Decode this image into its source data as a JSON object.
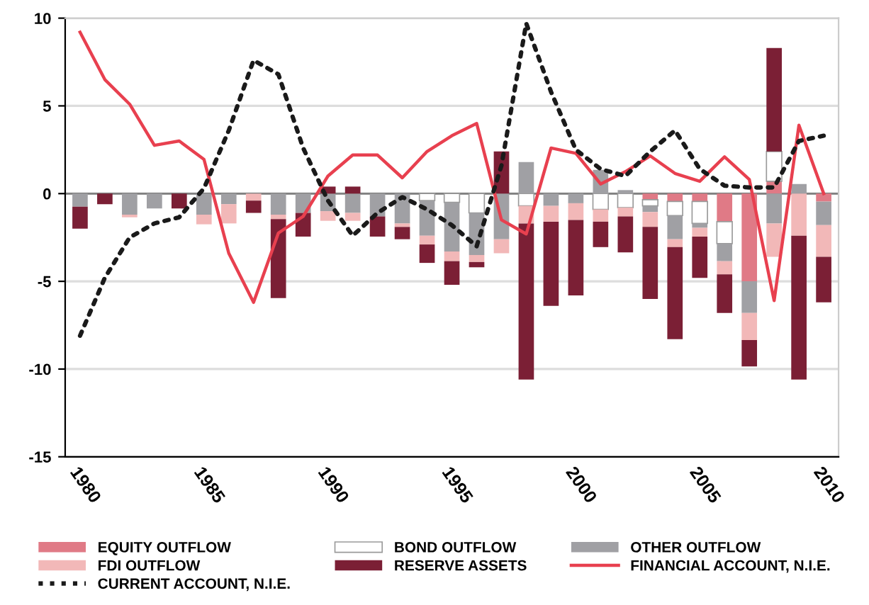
{
  "chart_data": {
    "type": "bar",
    "stacked": true,
    "categories": [
      "1980",
      null,
      null,
      null,
      null,
      "1985",
      null,
      null,
      null,
      null,
      "1990",
      null,
      null,
      null,
      null,
      "1995",
      null,
      null,
      null,
      null,
      "2000",
      null,
      null,
      null,
      null,
      "2005",
      null,
      null,
      null,
      null,
      "2010"
    ],
    "series": [
      {
        "name": "EQUITY OUTFLOW",
        "color": "#e07a86",
        "values": [
          null,
          null,
          null,
          null,
          null,
          null,
          null,
          null,
          null,
          null,
          null,
          null,
          null,
          null,
          null,
          null,
          null,
          null,
          null,
          null,
          null,
          null,
          null,
          -0.35,
          -0.45,
          -0.45,
          -1.6,
          -5.0,
          0.7,
          null,
          -0.45
        ]
      },
      {
        "name": "BOND OUTFLOW",
        "color": "#ffffff",
        "values": [
          null,
          null,
          null,
          null,
          null,
          null,
          null,
          null,
          null,
          null,
          null,
          null,
          null,
          null,
          -0.4,
          -0.5,
          -1.1,
          null,
          -0.7,
          null,
          null,
          -0.9,
          -0.8,
          -0.35,
          -0.8,
          -1.25,
          -1.25,
          null,
          1.7,
          null,
          null
        ]
      },
      {
        "name": "OTHER OUTFLOW",
        "color": "#a0a0a4",
        "values": [
          -0.75,
          null,
          -1.2,
          -0.85,
          null,
          -1.2,
          -0.6,
          null,
          -1.2,
          -1.1,
          -1.0,
          -1.1,
          -1.3,
          -1.7,
          -2.0,
          -2.8,
          -2.4,
          -2.6,
          1.8,
          -0.7,
          -0.55,
          1.35,
          0.2,
          -0.35,
          -1.35,
          -0.25,
          -1.0,
          -1.8,
          -1.7,
          0.55,
          -1.35
        ]
      },
      {
        "name": "FDI OUTFLOW",
        "color": "#f2b8b8",
        "values": [
          null,
          null,
          -0.15,
          null,
          null,
          -0.55,
          -1.1,
          -0.4,
          -0.25,
          null,
          -0.55,
          -0.45,
          null,
          -0.2,
          -0.5,
          -0.55,
          -0.4,
          -0.8,
          -1.0,
          -0.9,
          -0.95,
          -0.7,
          -0.5,
          -0.85,
          -0.45,
          -0.5,
          -0.75,
          -1.55,
          -1.9,
          -2.4,
          -1.8
        ]
      },
      {
        "name": "RESERVE ASSETS",
        "color": "#7b1f35",
        "values": [
          -1.25,
          -0.6,
          null,
          null,
          -0.85,
          null,
          null,
          -0.7,
          -4.5,
          -1.35,
          0.4,
          0.4,
          -1.15,
          -0.7,
          -1.05,
          -1.35,
          -0.3,
          2.4,
          -8.9,
          -4.8,
          -4.3,
          -1.45,
          -2.05,
          -4.1,
          -5.25,
          -2.35,
          -2.2,
          -1.5,
          5.9,
          -8.2,
          -2.6
        ]
      },
      {
        "name": "FINANCIAL ACCOUNT, N.I.E.",
        "type": "line",
        "color": "#e8404f",
        "line_style": "solid",
        "values": [
          9.2,
          6.5,
          5.1,
          2.75,
          3.0,
          1.95,
          -3.4,
          -6.2,
          -2.25,
          -1.3,
          1.0,
          2.2,
          2.2,
          0.9,
          2.4,
          3.3,
          4.0,
          -1.5,
          -2.3,
          2.6,
          2.3,
          0.55,
          1.25,
          2.15,
          1.15,
          0.7,
          2.1,
          0.8,
          -6.1,
          3.9,
          0
        ]
      },
      {
        "name": "CURRENT ACCOUNT, N.I.E.",
        "type": "line",
        "color": "#1a1a1a",
        "line_style": "dotted",
        "values": [
          -8.1,
          -4.8,
          -2.5,
          -1.7,
          -1.35,
          0.3,
          3.6,
          7.6,
          6.8,
          2.6,
          -0.4,
          -2.4,
          -1.1,
          -0.2,
          -0.9,
          -1.8,
          -3.0,
          1.6,
          9.7,
          5.8,
          2.5,
          1.4,
          1.0,
          2.4,
          3.6,
          1.4,
          0.45,
          0.35,
          0.35,
          3.0,
          3.3
        ]
      }
    ],
    "ylim": [
      -15,
      10
    ],
    "yticks": [
      -15,
      -10,
      -5,
      0,
      5,
      10
    ],
    "grid": "y",
    "legend": "bottom"
  }
}
